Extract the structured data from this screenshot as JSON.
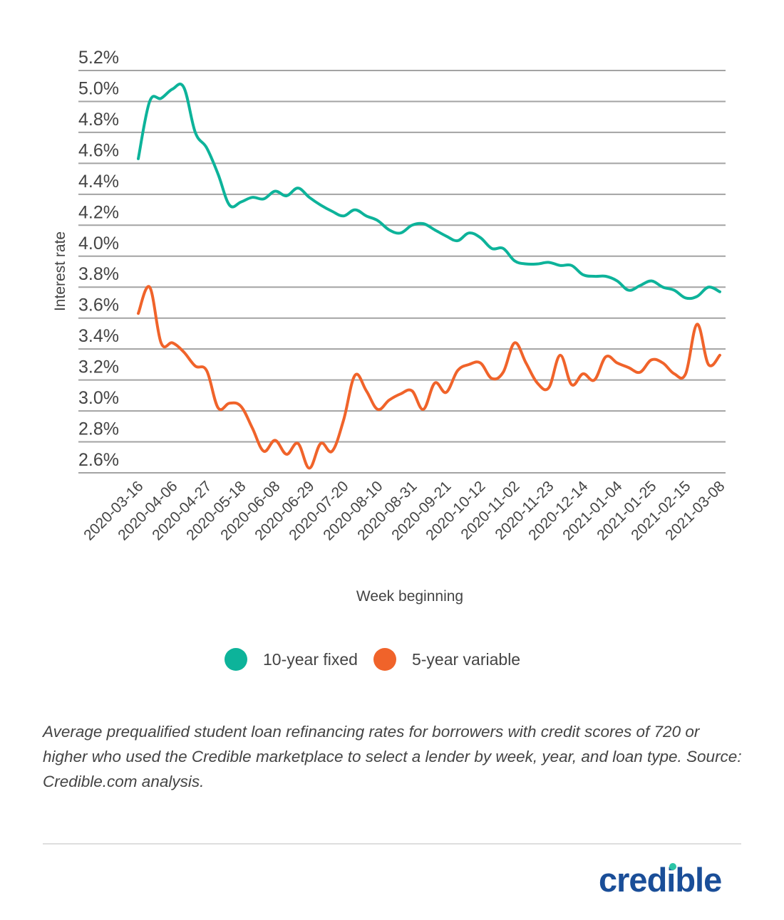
{
  "chart_data": {
    "type": "line",
    "title": "",
    "xlabel": "Week beginning",
    "ylabel": "Interest rate",
    "ylim": [
      2.6,
      5.2
    ],
    "yticks": [
      "5.2%",
      "5.0%",
      "4.8%",
      "4.6%",
      "4.4%",
      "4.2%",
      "4.0%",
      "3.8%",
      "3.6%",
      "3.4%",
      "3.2%",
      "3.0%",
      "2.8%",
      "2.6%"
    ],
    "ytick_values": [
      5.2,
      5.0,
      4.8,
      4.6,
      4.4,
      4.2,
      4.0,
      3.8,
      3.6,
      3.4,
      3.2,
      3.0,
      2.8,
      2.6
    ],
    "grid": true,
    "x_start": "2020-03-16",
    "x_end": "2021-03-08",
    "x_interval": "weekly",
    "xtick_labels": [
      "2020-03-16",
      "2020-04-06",
      "2020-04-27",
      "2020-05-18",
      "2020-06-08",
      "2020-06-29",
      "2020-07-20",
      "2020-08-10",
      "2020-08-31",
      "2020-09-21",
      "2020-10-12",
      "2020-11-02",
      "2020-11-23",
      "2020-12-14",
      "2021-01-04",
      "2021-01-25",
      "2021-02-15",
      "2021-03-08"
    ],
    "xtick_every_n_weeks": 3,
    "legend_position": "bottom-center",
    "series": [
      {
        "name": "10-year fixed",
        "color": "#0db39a",
        "values": [
          4.63,
          5.0,
          5.02,
          5.08,
          5.09,
          4.8,
          4.7,
          4.53,
          4.33,
          4.35,
          4.38,
          4.37,
          4.42,
          4.39,
          4.44,
          4.38,
          4.33,
          4.29,
          4.26,
          4.3,
          4.26,
          4.23,
          4.17,
          4.15,
          4.2,
          4.21,
          4.17,
          4.13,
          4.1,
          4.15,
          4.12,
          4.05,
          4.05,
          3.97,
          3.95,
          3.95,
          3.96,
          3.94,
          3.94,
          3.88,
          3.87,
          3.87,
          3.84,
          3.78,
          3.81,
          3.84,
          3.8,
          3.78,
          3.73,
          3.74,
          3.8,
          3.77
        ]
      },
      {
        "name": "5-year variable",
        "color": "#f0632a",
        "values": [
          3.63,
          3.8,
          3.44,
          3.44,
          3.38,
          3.29,
          3.26,
          3.02,
          3.05,
          3.03,
          2.89,
          2.74,
          2.81,
          2.72,
          2.79,
          2.63,
          2.79,
          2.74,
          2.94,
          3.23,
          3.13,
          3.01,
          3.07,
          3.11,
          3.13,
          3.01,
          3.18,
          3.12,
          3.26,
          3.3,
          3.31,
          3.21,
          3.25,
          3.44,
          3.31,
          3.18,
          3.15,
          3.36,
          3.17,
          3.24,
          3.2,
          3.35,
          3.31,
          3.28,
          3.25,
          3.33,
          3.31,
          3.24,
          3.24,
          3.56,
          3.3,
          3.36
        ]
      }
    ]
  },
  "legend": {
    "items": [
      {
        "label": "10-year fixed",
        "color": "#0db39a"
      },
      {
        "label": "5-year variable",
        "color": "#f0632a"
      }
    ]
  },
  "caption": "Average prequalified student loan refinancing rates for borrowers with credit scores of 720 or higher who used the Credible marketplace to select a lender by week, year, and loan type. Source: Credible.com analysis.",
  "logo": {
    "text": "credible",
    "color": "#1a4e98",
    "dot_color": "#2bc4a6"
  }
}
